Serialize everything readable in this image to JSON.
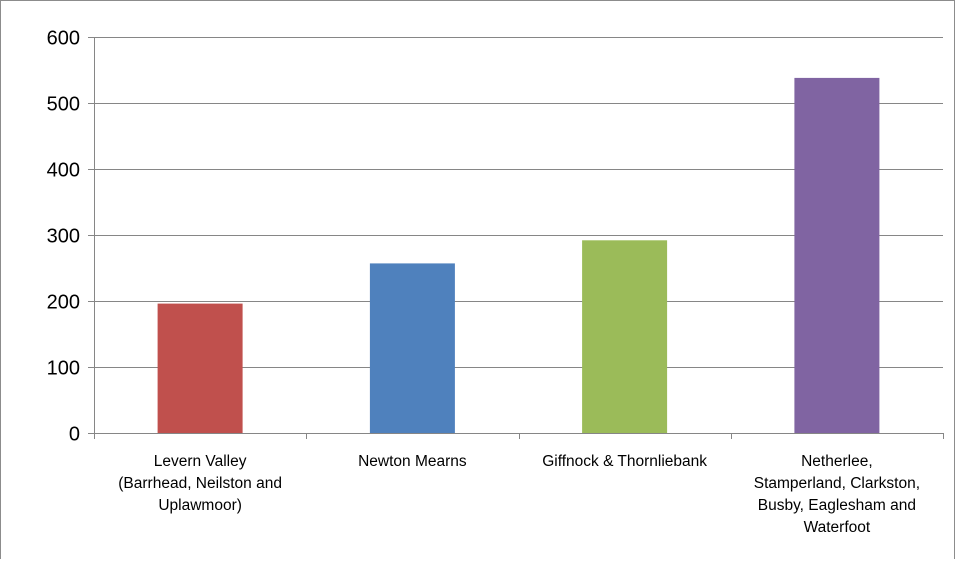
{
  "chart_data": {
    "type": "bar",
    "categories": [
      [
        "Levern Valley",
        "(Barrhead, Neilston and",
        "Uplawmoor)"
      ],
      [
        "Newton Mearns"
      ],
      [
        "Giffnock & Thornliebank"
      ],
      [
        "Netherlee,",
        "Stamperland, Clarkston,",
        "Busby, Eaglesham and",
        "Waterfoot"
      ]
    ],
    "values": [
      196,
      257,
      292,
      538
    ],
    "colors": [
      "#c0504d",
      "#4f81bd",
      "#9bbb59",
      "#8064a2"
    ],
    "ylim": [
      0,
      600
    ],
    "yticks": [
      0,
      100,
      200,
      300,
      400,
      500,
      600
    ],
    "grid": true,
    "title": "",
    "xlabel": "",
    "ylabel": ""
  }
}
